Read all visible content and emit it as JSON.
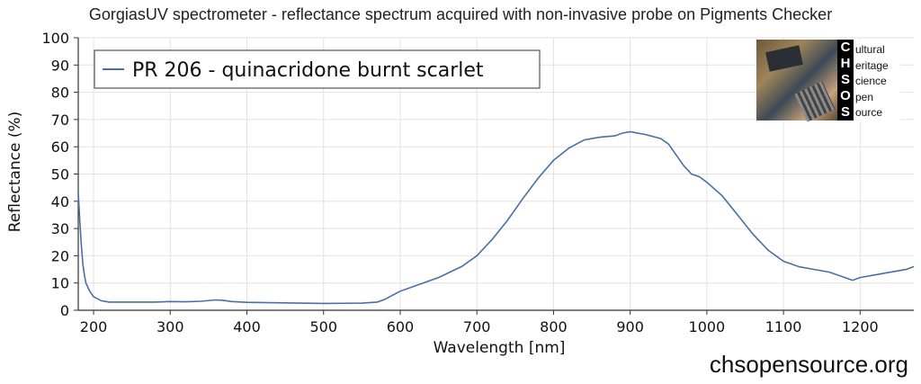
{
  "header": {
    "title": "GorgiasUV spectrometer - reflectance spectrum acquired with non-invasive probe on Pigments Checker"
  },
  "footer": {
    "website": "chsopensource.org"
  },
  "logo": {
    "letters": [
      "C",
      "H",
      "S",
      "O",
      "S"
    ],
    "words": [
      "ultural",
      "eritage",
      "cience",
      "pen",
      "ource"
    ]
  },
  "chart_data": {
    "type": "line",
    "title": "GorgiasUV spectrometer - reflectance spectrum acquired with non-invasive probe on Pigments Checker",
    "xlabel": "Wavelength [nm]",
    "ylabel": "Reflectance (%)",
    "xlim": [
      180,
      1270
    ],
    "ylim": [
      0,
      100
    ],
    "xticks": [
      200,
      300,
      400,
      500,
      600,
      700,
      800,
      900,
      1000,
      1100,
      1200
    ],
    "yticks": [
      0,
      10,
      20,
      30,
      40,
      50,
      60,
      70,
      80,
      90,
      100
    ],
    "grid": true,
    "legend_position": "top-left",
    "series_color": "#4a6fa5",
    "series": [
      {
        "name": "PR 206 - quinacridone burnt scarlet",
        "x": [
          180,
          182,
          184,
          186,
          188,
          190,
          195,
          200,
          210,
          220,
          250,
          280,
          300,
          320,
          340,
          360,
          370,
          380,
          400,
          450,
          500,
          550,
          570,
          580,
          590,
          600,
          620,
          650,
          680,
          700,
          720,
          740,
          760,
          780,
          800,
          820,
          840,
          860,
          880,
          890,
          900,
          920,
          940,
          950,
          960,
          970,
          980,
          990,
          1000,
          1020,
          1040,
          1060,
          1080,
          1100,
          1120,
          1140,
          1160,
          1180,
          1190,
          1200,
          1220,
          1240,
          1260,
          1270
        ],
        "y": [
          43,
          33,
          24,
          17,
          13,
          10,
          7,
          5,
          3.5,
          3,
          3,
          3,
          3.2,
          3.1,
          3.3,
          3.8,
          3.6,
          3.2,
          2.9,
          2.7,
          2.5,
          2.6,
          3,
          4,
          5.5,
          7,
          9,
          12,
          16,
          20,
          26,
          33,
          41,
          48.5,
          55,
          59.5,
          62.5,
          63.5,
          64,
          65,
          65.5,
          64.5,
          63,
          61,
          57,
          53,
          50,
          49,
          47,
          42,
          35,
          28,
          22,
          18,
          16,
          15,
          14,
          12,
          11,
          12,
          13,
          14,
          15,
          16
        ]
      }
    ]
  }
}
